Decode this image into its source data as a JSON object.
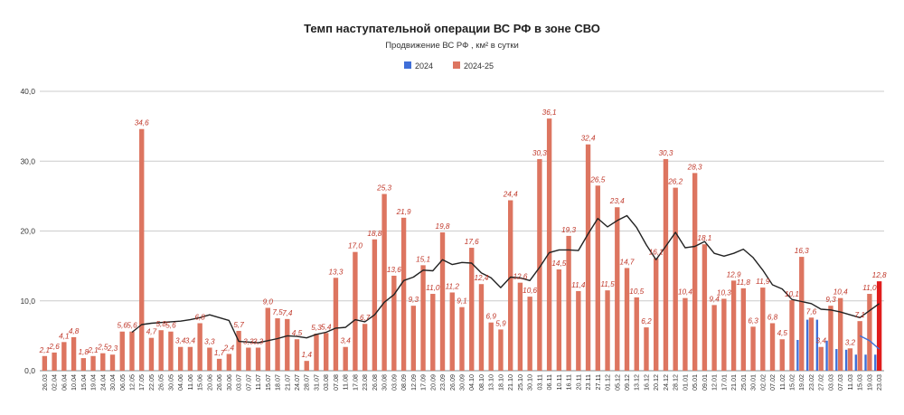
{
  "chart_data": {
    "type": "bar",
    "title": "Темп наступательной операции ВС РФ в зоне СВО",
    "subtitle": "Продвижение ВС РФ , км² в сутки",
    "xlabel": "",
    "ylabel": "",
    "ylim": [
      0,
      40
    ],
    "yticks": [
      "0,0",
      "10,0",
      "20,0",
      "30,0",
      "40,0"
    ],
    "grid": true,
    "legend_position": "top-center",
    "colors": {
      "series_2024": "#3f6fd8",
      "series_2024_25": "#dd7560",
      "latest_bar": "#e01c1c",
      "trend": "#222222",
      "trend_2024": "#3f6fd8"
    },
    "categories": [
      "26.03",
      "02.04",
      "06.04",
      "10.04",
      "15.04",
      "19.04",
      "24.04",
      "30.04",
      "06.05",
      "12.05",
      "17.05",
      "22.05",
      "26.05",
      "30.05",
      "04.06",
      "11.06",
      "15.06",
      "20.06",
      "26.06",
      "30.06",
      "03.07",
      "07.07",
      "11.07",
      "15.07",
      "18.07",
      "21.07",
      "24.07",
      "28.07",
      "31.07",
      "03.08",
      "07.08",
      "11.08",
      "17.08",
      "23.08",
      "26.08",
      "30.08",
      "03.09",
      "08.09",
      "12.09",
      "17.09",
      "20.09",
      "23.09",
      "26.09",
      "30.09",
      "04.10",
      "08.10",
      "13.10",
      "18.10",
      "21.10",
      "25.10",
      "30.10",
      "03.11",
      "06.11",
      "10.11",
      "16.11",
      "20.11",
      "23.11",
      "27.11",
      "01.12",
      "05.12",
      "09.12",
      "13.12",
      "16.12",
      "20.12",
      "24.12",
      "28.12",
      "01.01",
      "05.01",
      "09.01",
      "12.01",
      "17.01",
      "21.01",
      "25.01",
      "30.01",
      "02.02",
      "07.02",
      "11.02",
      "15.02",
      "19.02",
      "23.02",
      "27.02",
      "03.03",
      "07.03",
      "11.03",
      "15.03",
      "19.03",
      "23.03"
    ],
    "series": [
      {
        "name": "2024-25",
        "values": [
          2.1,
          2.6,
          4.1,
          4.8,
          1.8,
          2.1,
          2.5,
          2.3,
          5.6,
          5.6,
          34.6,
          4.7,
          5.8,
          5.6,
          3.4,
          3.4,
          6.8,
          3.3,
          1.7,
          2.4,
          5.7,
          3.3,
          3.3,
          9.0,
          7.5,
          7.4,
          4.5,
          1.4,
          5.3,
          5.4,
          13.3,
          3.4,
          17.0,
          6.7,
          18.8,
          25.3,
          13.6,
          21.9,
          9.3,
          15.1,
          11.0,
          19.8,
          11.2,
          9.1,
          17.6,
          12.4,
          6.9,
          5.9,
          24.4,
          12.6,
          10.6,
          30.3,
          36.1,
          14.5,
          19.3,
          11.4,
          32.4,
          26.5,
          11.5,
          23.4,
          14.7,
          10.5,
          6.2,
          16.1,
          30.3,
          26.2,
          10.4,
          28.3,
          18.1,
          9.4,
          10.3,
          12.9,
          11.8,
          6.3,
          11.9,
          6.8,
          4.5,
          10.1,
          16.3,
          7.6,
          3.4,
          9.3,
          10.4,
          3.2,
          7.1,
          11.0,
          12.8
        ],
        "labels": [
          "2,1",
          "2,6",
          "4,1",
          "4,8",
          "1,8",
          "2,1",
          "2,5",
          "2,3",
          "5,6",
          "5,6",
          "34,6",
          "4,7",
          "5,8",
          "5,6",
          "3,4",
          "3,4",
          "6,8",
          "3,3",
          "1,7",
          "2,4",
          "5,7",
          "3,3",
          "3,3",
          "9,0",
          "7,5",
          "7,4",
          "4,5",
          "1,4",
          "5,3",
          "5,4",
          "13,3",
          "3,4",
          "17,0",
          "6,7",
          "18,8",
          "25,3",
          "13,6",
          "21,9",
          "9,3",
          "15,1",
          "11,0",
          "19,8",
          "11,2",
          "9,1",
          "17,6",
          "12,4",
          "6,9",
          "5,9",
          "24,4",
          "12,6",
          "10,6",
          "30,3",
          "36,1",
          "14,5",
          "19,3",
          "11,4",
          "32,4",
          "26,5",
          "11,5",
          "23,4",
          "14,7",
          "10,5",
          "6,2",
          "16,1",
          "30,3",
          "26,2",
          "10,4",
          "28,3",
          "18,1",
          "9,4",
          "10,3",
          "12,9",
          "11,8",
          "6,3",
          "11,9",
          "6,8",
          "4,5",
          "10,1",
          "16,3",
          "7,6",
          "3,4",
          "9,3",
          "10,4",
          "3,2",
          "7,1",
          "11,0",
          "12,8"
        ]
      },
      {
        "name": "2024",
        "values": [
          null,
          null,
          null,
          null,
          null,
          null,
          null,
          null,
          null,
          null,
          null,
          null,
          null,
          null,
          null,
          null,
          null,
          null,
          null,
          null,
          null,
          null,
          null,
          null,
          null,
          null,
          null,
          null,
          null,
          null,
          null,
          null,
          null,
          null,
          null,
          null,
          null,
          null,
          null,
          null,
          null,
          null,
          null,
          null,
          null,
          null,
          null,
          null,
          null,
          null,
          null,
          null,
          null,
          null,
          null,
          null,
          null,
          null,
          null,
          null,
          null,
          null,
          null,
          null,
          null,
          null,
          null,
          null,
          null,
          null,
          null,
          null,
          null,
          null,
          null,
          null,
          null,
          null,
          4.4,
          7.3,
          7.3,
          4.3,
          3.1,
          3.0,
          2.3,
          2.3,
          2.3
        ]
      }
    ],
    "trend_2024_25": [
      null,
      null,
      null,
      null,
      null,
      null,
      null,
      null,
      null,
      5.5,
      6.6,
      6.8,
      6.9,
      7.0,
      7.1,
      7.3,
      7.6,
      8.0,
      7.6,
      7.2,
      4.2,
      4.1,
      4.0,
      4.3,
      4.6,
      5.0,
      4.9,
      4.7,
      5.2,
      5.5,
      6.1,
      6.2,
      7.3,
      7.0,
      8.0,
      9.8,
      10.9,
      12.9,
      13.4,
      14.4,
      14.3,
      15.9,
      15.2,
      15.5,
      15.4,
      14.0,
      13.3,
      11.9,
      13.4,
      13.3,
      12.9,
      14.8,
      16.9,
      17.3,
      17.3,
      17.2,
      19.6,
      21.8,
      20.6,
      21.5,
      22.2,
      20.5,
      18.0,
      15.9,
      17.8,
      19.8,
      17.6,
      17.8,
      18.5,
      16.8,
      16.4,
      16.8,
      17.4,
      16.2,
      14.4,
      12.3,
      11.7,
      10.2,
      9.9,
      9.6,
      8.8,
      8.7,
      8.4,
      8.0,
      7.6,
      8.6,
      9.6
    ],
    "trend_2024": [
      null,
      null,
      null,
      null,
      null,
      null,
      null,
      null,
      null,
      null,
      null,
      null,
      null,
      null,
      null,
      null,
      null,
      null,
      null,
      null,
      null,
      null,
      null,
      null,
      null,
      null,
      null,
      null,
      null,
      null,
      null,
      null,
      null,
      null,
      null,
      null,
      null,
      null,
      null,
      null,
      null,
      null,
      null,
      null,
      null,
      null,
      null,
      null,
      null,
      null,
      null,
      null,
      null,
      null,
      null,
      null,
      null,
      null,
      null,
      null,
      null,
      null,
      null,
      null,
      null,
      null,
      null,
      null,
      null,
      null,
      null,
      null,
      null,
      null,
      null,
      null,
      null,
      null,
      null,
      null,
      null,
      null,
      null,
      null,
      5.0,
      4.3,
      3.1
    ]
  }
}
